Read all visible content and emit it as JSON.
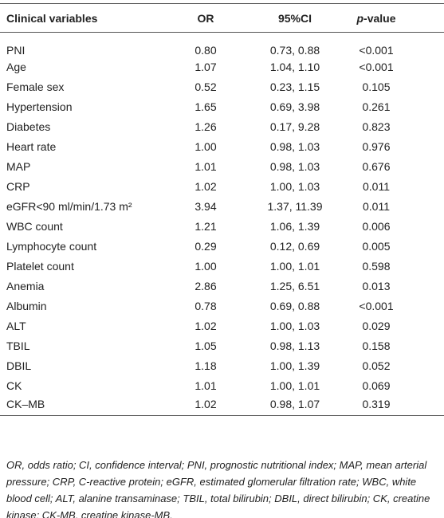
{
  "table": {
    "header": [
      "Clinical variables",
      "OR",
      "95%CI",
      [
        "p",
        "-value"
      ]
    ],
    "rows": [
      [
        "PNI",
        "0.80",
        "0.73, 0.88",
        "<0.001"
      ],
      [
        "Age",
        "1.07",
        "1.04, 1.10",
        "<0.001"
      ],
      [
        "Female sex",
        "0.52",
        "0.23, 1.15",
        "0.105"
      ],
      [
        "Hypertension",
        "1.65",
        "0.69, 3.98",
        "0.261"
      ],
      [
        "Diabetes",
        "1.26",
        "0.17, 9.28",
        "0.823"
      ],
      [
        "Heart rate",
        "1.00",
        "0.98, 1.03",
        "0.976"
      ],
      [
        "MAP",
        "1.01",
        "0.98, 1.03",
        "0.676"
      ],
      [
        "CRP",
        "1.02",
        "1.00, 1.03",
        "0.011"
      ],
      [
        "eGFR<90 ml/min/1.73 m²",
        "3.94",
        "1.37, 11.39",
        "0.011"
      ],
      [
        "WBC count",
        "1.21",
        "1.06, 1.39",
        "0.006"
      ],
      [
        "Lymphocyte count",
        "0.29",
        "0.12, 0.69",
        "0.005"
      ],
      [
        "Platelet count",
        "1.00",
        "1.00, 1.01",
        "0.598"
      ],
      [
        "Anemia",
        "2.86",
        "1.25, 6.51",
        "0.013"
      ],
      [
        "Albumin",
        "0.78",
        "0.69, 0.88",
        "<0.001"
      ],
      [
        "ALT",
        "1.02",
        "1.00, 1.03",
        "0.029"
      ],
      [
        "TBIL",
        "1.05",
        "0.98, 1.13",
        "0.158"
      ],
      [
        "DBIL",
        "1.18",
        "1.00, 1.39",
        "0.052"
      ],
      [
        "CK",
        "1.01",
        "1.00, 1.01",
        "0.069"
      ],
      [
        "CK–MB",
        "1.02",
        "0.98, 1.07",
        "0.319"
      ]
    ]
  },
  "footnote": "OR, odds ratio; CI, confidence interval; PNI, prognostic nutritional index; MAP, mean arterial pressure; CRP, C-reactive protein; eGFR, estimated glomerular filtration rate; WBC, white blood cell; ALT, alanine transaminase; TBIL, total bilirubin; DBIL, direct bilirubin; CK, creatine kinase; CK-MB, creatine kinase-MB."
}
